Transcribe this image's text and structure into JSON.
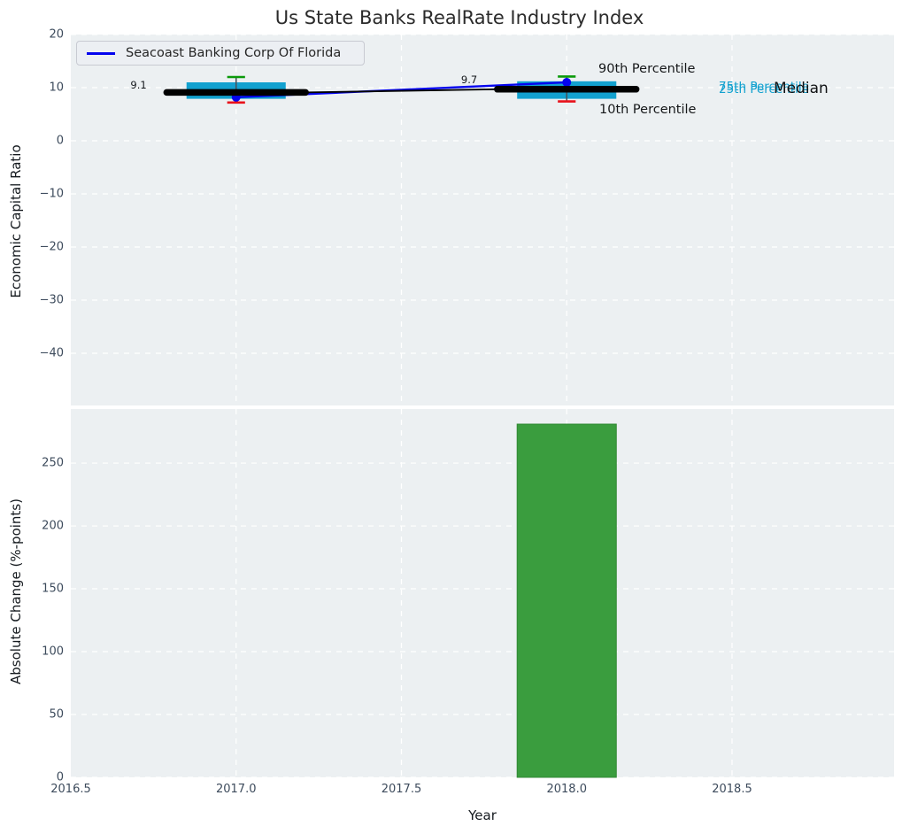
{
  "title": "Us State Banks RealRate Industry Index",
  "legend": {
    "sample_icon": "blue-line-sample"
  },
  "colors": {
    "plot_background": "#ecf0f2",
    "gridline": "#ffffff",
    "box_fill": "#12a1cf",
    "cap_high_green": "#0a9a0a",
    "cap_low_red": "#e8111a",
    "median_black": "#000000",
    "company_blue": "#0404ee",
    "bar_green": "#3a9d3e",
    "cyan_text": "#12a1cf",
    "tick_text": "#3d4b5c",
    "whisker": "#46525c"
  },
  "chart_data": [
    {
      "type": "line",
      "subtype": "percentile-band-boxes",
      "title": "Us State Banks RealRate Industry Index",
      "xlabel": "",
      "ylabel": "Economic Capital Ratio",
      "xlim": [
        2016.5,
        2018.99
      ],
      "ylim": [
        -49.8,
        20
      ],
      "grid": "white-dashed",
      "legend_position": "upper left",
      "yticks": [
        20,
        10,
        0,
        -10,
        -20,
        -30,
        -40
      ],
      "ytick_labels": [
        "20",
        "10",
        "0",
        "−10",
        "−20",
        "−30",
        "−40"
      ],
      "xgrid_years": [
        2017,
        2017.5,
        2018,
        2018.5
      ],
      "categories": [
        2017,
        2018
      ],
      "series": [
        {
          "name": "Median",
          "values": [
            9.1,
            9.7
          ],
          "color": "#000000"
        },
        {
          "name": "75th Percentile",
          "values": [
            11.0,
            11.2
          ],
          "color": "#12a1cf"
        },
        {
          "name": "25th Percentile",
          "values": [
            7.9,
            7.9
          ],
          "color": "#12a1cf"
        },
        {
          "name": "90th Percentile",
          "values": [
            12.0,
            12.1
          ],
          "color": "#0a9a0a"
        },
        {
          "name": "10th Percentile",
          "values": [
            7.2,
            7.4
          ],
          "color": "#e8111a"
        },
        {
          "name": "Seacoast Banking Corp Of Florida",
          "values": [
            8.2,
            11.0
          ],
          "color": "#0404ee"
        }
      ],
      "company_name": "Seacoast Banking Corp Of Florida",
      "annotations": {
        "median_value_labels": [
          "9.1",
          "9.7"
        ],
        "p90_label": "90th Percentile",
        "p10_label": "10th Percentile",
        "p75_label": "75th Percentile",
        "p25_label": "25th Percentile",
        "median_label": "Median"
      },
      "box_half_width_years": 0.15,
      "median_half_width_years": 0.21,
      "cap_half_width_years": 0.027
    },
    {
      "type": "bar",
      "xlabel": "Year",
      "ylabel": "Absolute Change (%-points)",
      "xlim": [
        2016.5,
        2018.99
      ],
      "ylim": [
        0,
        293
      ],
      "grid": "white-dashed",
      "yticks": [
        0,
        50,
        100,
        150,
        200,
        250
      ],
      "ytick_labels": [
        "0",
        "50",
        "100",
        "150",
        "200",
        "250"
      ],
      "xticks": [
        2016.5,
        2017.0,
        2017.5,
        2018.0,
        2018.5
      ],
      "xtick_labels": [
        "2016.5",
        "2017.0",
        "2017.5",
        "2018.0",
        "2018.5"
      ],
      "xgrid_years": [
        2017,
        2017.5,
        2018,
        2018.5
      ],
      "categories": [
        2018
      ],
      "values": [
        281
      ],
      "bar_width_years": 0.3,
      "bar_color": "#3a9d3e"
    }
  ]
}
